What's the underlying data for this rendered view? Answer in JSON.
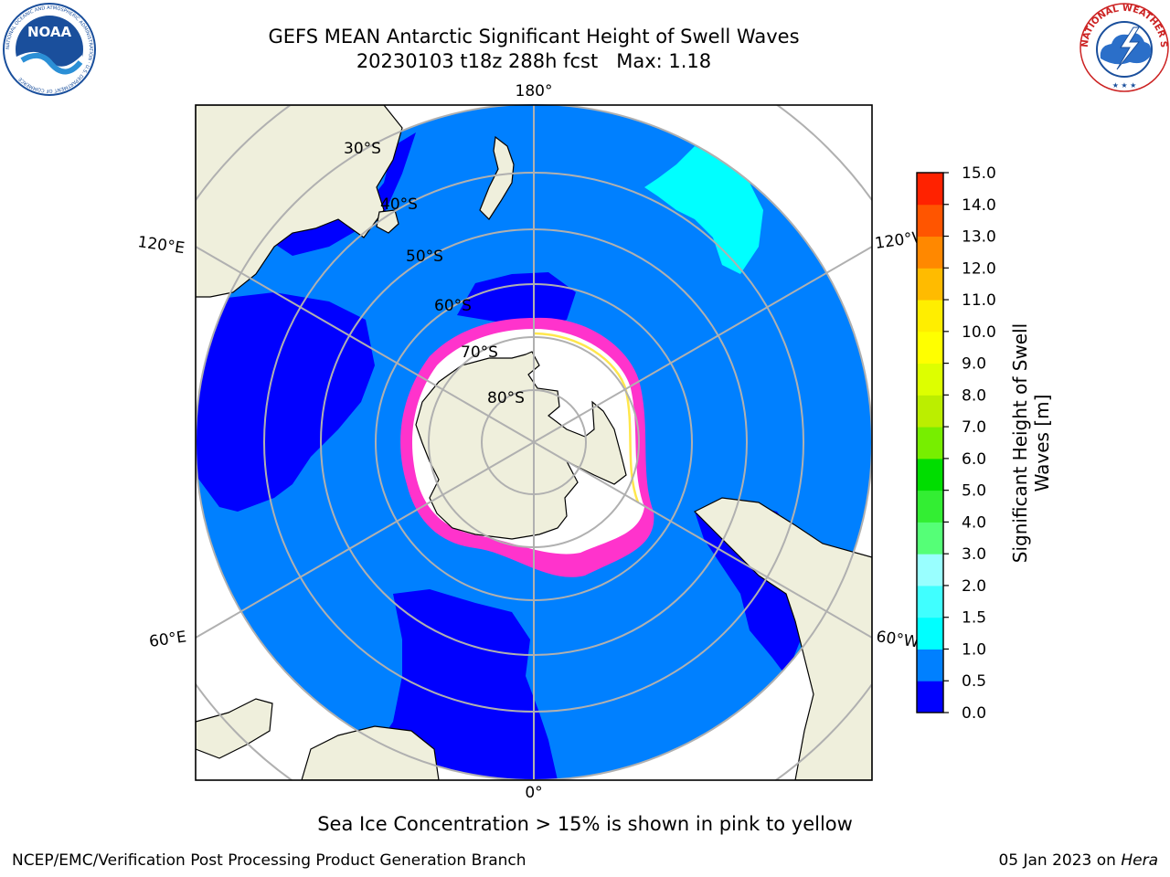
{
  "title": {
    "line1": "GEFS MEAN Antarctic Significant Height of Swell Waves",
    "line2": "20230103 t18z 288h fcst   Max: 1.18"
  },
  "logos": {
    "noaa": {
      "text": "NOAA",
      "ring": "NATIONAL OCEANIC AND ATMOSPHERIC ADMINISTRATION · U.S. DEPARTMENT OF COMMERCE"
    },
    "nws": {
      "ring": "NATIONAL WEATHER SERVICE"
    }
  },
  "map": {
    "projection": "south-polar-stereographic",
    "lon_labels": [
      "180°",
      "120°E",
      "120°W",
      "60°E",
      "60°W",
      "0°"
    ],
    "lat_labels": [
      "30°S",
      "40°S",
      "50°S",
      "60°S",
      "70°S",
      "80°S"
    ],
    "colors": {
      "ocean": "#0080ff",
      "low_swell": "#0000ff",
      "swell_0_5_1_0": "#0080ff",
      "swell_1_0_1_5": "#00ffff",
      "land": "#efefdc",
      "sea_ice_high": "#ffffff",
      "sea_ice_edge": "#ff33cc",
      "graticule": "#b0b0b0"
    }
  },
  "colorbar": {
    "label_line1": "Significant Height of Swell",
    "label_line2": "Waves [m]",
    "ticks": [
      "0.0",
      "0.5",
      "1.0",
      "1.5",
      "2.0",
      "3.0",
      "4.0",
      "5.0",
      "6.0",
      "7.0",
      "8.0",
      "9.0",
      "10.0",
      "11.0",
      "12.0",
      "13.0",
      "14.0",
      "15.0"
    ],
    "colors": [
      "#0000ff",
      "#0080ff",
      "#00ffff",
      "#40ffff",
      "#99ffff",
      "#55ff77",
      "#33ee33",
      "#00dd00",
      "#77ee00",
      "#bbee00",
      "#ddff00",
      "#ffff00",
      "#ffee00",
      "#ffbb00",
      "#ff8800",
      "#ff5500",
      "#ff2200"
    ]
  },
  "sea_ice_note": "Sea Ice Concentration > 15% is shown in pink to yellow",
  "footer": {
    "left": "NCEP/EMC/Verification Post Processing Product Generation Branch",
    "date": "05 Jan 2023 on ",
    "machine": "Hera"
  }
}
